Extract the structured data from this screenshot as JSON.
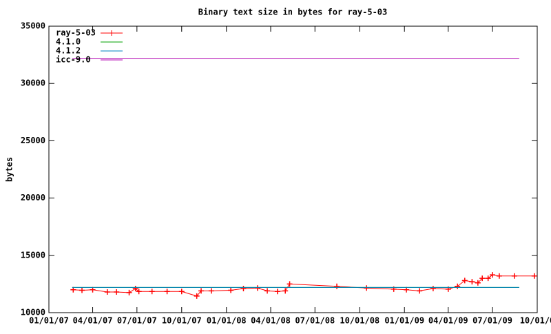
{
  "chart_data": {
    "type": "line",
    "title": "Binary text size in bytes for ray-5-03",
    "y_label": "bytes",
    "xlim": [
      "2007-01-01",
      "2009-10-01"
    ],
    "xticks": [
      {
        "value": "2007-01-01",
        "label": "01/01/07"
      },
      {
        "value": "2007-04-01",
        "label": "04/01/07"
      },
      {
        "value": "2007-07-01",
        "label": "07/01/07"
      },
      {
        "value": "2007-10-01",
        "label": "10/01/07"
      },
      {
        "value": "2008-01-01",
        "label": "01/01/08"
      },
      {
        "value": "2008-04-01",
        "label": "04/01/08"
      },
      {
        "value": "2008-07-01",
        "label": "07/01/08"
      },
      {
        "value": "2008-10-01",
        "label": "10/01/08"
      },
      {
        "value": "2009-01-01",
        "label": "01/01/09"
      },
      {
        "value": "2009-04-01",
        "label": "04/01/09"
      },
      {
        "value": "2009-07-01",
        "label": "07/01/09"
      },
      {
        "value": "2009-10-01",
        "label": "10/01/0"
      }
    ],
    "ylim": [
      10000,
      35000
    ],
    "yticks": [
      10000,
      15000,
      20000,
      25000,
      30000,
      35000
    ],
    "legend": "top-left",
    "series": [
      {
        "name": "ray-5-03",
        "color": "#ff0000",
        "markers": true,
        "x": [
          "2007-02-20",
          "2007-03-10",
          "2007-04-01",
          "2007-05-01",
          "2007-05-20",
          "2007-06-15",
          "2007-06-28",
          "2007-07-05",
          "2007-08-01",
          "2007-09-01",
          "2007-10-01",
          "2007-11-01",
          "2007-11-10",
          "2007-12-01",
          "2008-01-10",
          "2008-02-05",
          "2008-03-05",
          "2008-03-25",
          "2008-04-15",
          "2008-05-01",
          "2008-05-10",
          "2008-08-15",
          "2008-10-15",
          "2008-12-10",
          "2009-01-05",
          "2009-02-01",
          "2009-03-01",
          "2009-04-01",
          "2009-04-20",
          "2009-05-05",
          "2009-05-20",
          "2009-06-01",
          "2009-06-10",
          "2009-06-22",
          "2009-07-01",
          "2009-07-15",
          "2009-08-15",
          "2009-09-25"
        ],
        "values": [
          12000,
          11950,
          12000,
          11800,
          11800,
          11750,
          12100,
          11850,
          11850,
          11850,
          11850,
          11450,
          11900,
          11900,
          11950,
          12100,
          12150,
          11900,
          11850,
          11900,
          12500,
          12300,
          12150,
          12050,
          12000,
          11900,
          12100,
          12050,
          12300,
          12800,
          12700,
          12600,
          13000,
          13000,
          13300,
          13200,
          13200,
          13200
        ]
      },
      {
        "name": "4.1.0",
        "color": "#00a000",
        "x": [
          "2007-02-18",
          "2009-08-25"
        ],
        "values": [
          12200,
          12200
        ]
      },
      {
        "name": "4.1.2",
        "color": "#0080c0",
        "x": [
          "2007-02-18",
          "2009-08-25"
        ],
        "values": [
          12200,
          12200
        ]
      },
      {
        "name": "icc-9.0",
        "color": "#b000b0",
        "x": [
          "2007-02-18",
          "2009-08-25"
        ],
        "values": [
          32200,
          32200
        ]
      }
    ]
  }
}
